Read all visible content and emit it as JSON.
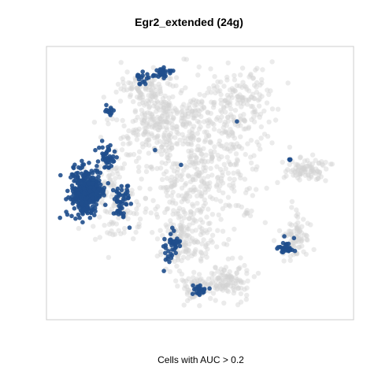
{
  "chart_data": {
    "type": "scatter",
    "title": "Egr2_extended (24g)",
    "caption": "Cells with AUC > 0.2",
    "xlabel": "",
    "ylabel": "",
    "xlim": [
      0,
      100
    ],
    "ylim": [
      0,
      100
    ],
    "grid": false,
    "legend": "none",
    "series": [
      {
        "name": "",
        "role": "background",
        "color": "#d3d3d3"
      },
      {
        "name": "",
        "role": "highlighted",
        "color": "#1f4e8c"
      }
    ]
  }
}
